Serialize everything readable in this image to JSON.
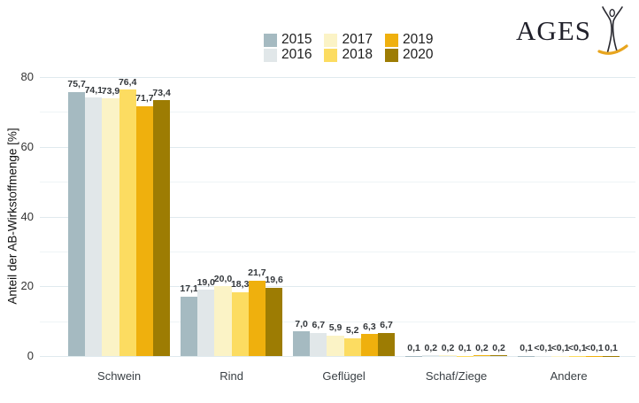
{
  "logo": {
    "text": "AGES",
    "figure_icon": "jumping-person-icon",
    "text_color": "#21212b",
    "figure_stroke_color": "#28282f",
    "swoosh_color": "#e8a51e"
  },
  "chart_data": {
    "type": "bar",
    "title": "",
    "ylabel": "Anteil der AB-Wirkstoffmenge [%]",
    "xlabel": "",
    "ylim": [
      0,
      80
    ],
    "yticks": [
      0,
      20,
      40,
      60,
      80
    ],
    "ytick_labels": [
      "0",
      "20",
      "40",
      "60",
      "80"
    ],
    "ytick_minor_step": 10,
    "ytick_major_step": 20,
    "grid": "horizontal-on",
    "legend_position": "top-center",
    "decimal_separator": ",",
    "categories": [
      "Schwein",
      "Rind",
      "Geflügel",
      "Schaf/Ziege",
      "Andere"
    ],
    "series": [
      {
        "name": "2015",
        "color": "#a5bac1",
        "values": [
          75.7,
          17.1,
          7.0,
          0.1,
          0.1
        ],
        "labels": [
          "75,7",
          "17,1",
          "7,0",
          "0,1",
          "0,1"
        ]
      },
      {
        "name": "2016",
        "color": "#e1e7e9",
        "values": [
          74.1,
          19.0,
          6.7,
          0.2,
          0.05
        ],
        "labels": [
          "74,1",
          "19,0",
          "6,7",
          "0,2",
          "<0,1"
        ]
      },
      {
        "name": "2017",
        "color": "#fbf3c6",
        "values": [
          73.9,
          20.0,
          5.9,
          0.2,
          0.05
        ],
        "labels": [
          "73,9",
          "20,0",
          "5,9",
          "0,2",
          "<0,1"
        ]
      },
      {
        "name": "2018",
        "color": "#fcdc61",
        "values": [
          76.4,
          18.3,
          5.2,
          0.1,
          0.05
        ],
        "labels": [
          "76,4",
          "18,3",
          "5,2",
          "0,1",
          "<0,1"
        ]
      },
      {
        "name": "2019",
        "color": "#efb00d",
        "values": [
          71.7,
          21.7,
          6.3,
          0.2,
          0.05
        ],
        "labels": [
          "71,7",
          "21,7",
          "6,3",
          "0,2",
          "<0,1"
        ]
      },
      {
        "name": "2020",
        "color": "#9d7c03",
        "values": [
          73.4,
          19.6,
          6.7,
          0.2,
          0.1
        ],
        "labels": [
          "73,4",
          "19,6",
          "6,7",
          "0,2",
          "0,1"
        ]
      }
    ],
    "colors": {
      "grid_major": "#e0eaee",
      "grid_minor": "#eef4f6",
      "tick_text": "#333333",
      "value_label_text": "#33373b",
      "category_text": "#3a4045"
    }
  }
}
